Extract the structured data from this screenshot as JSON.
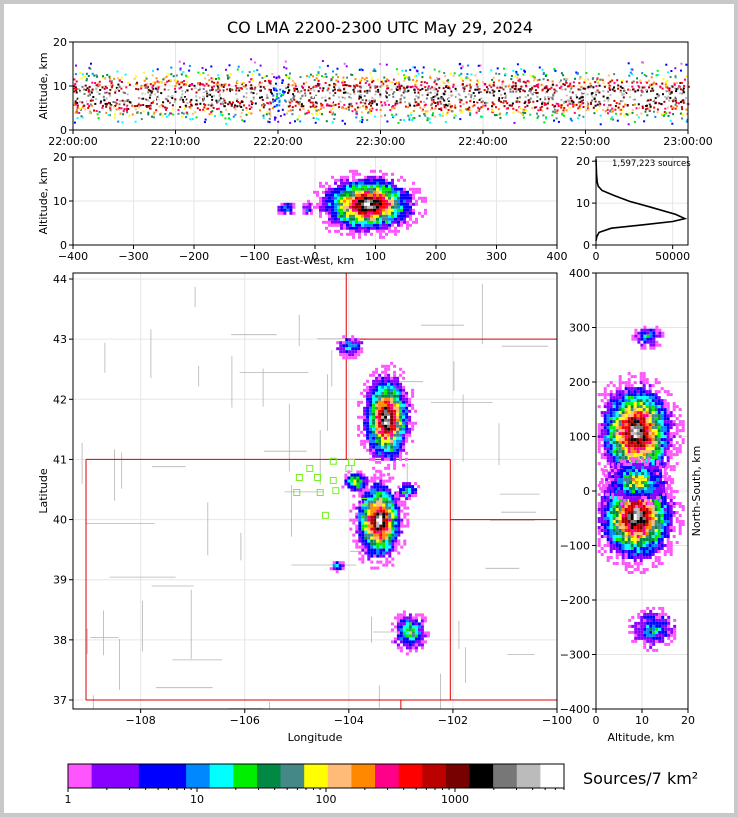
{
  "chart_data": [
    {
      "panel": "time-altitude",
      "type": "heatmap",
      "title": "CO LMA 2200-2300 UTC May 29, 2024",
      "ylabel": "Altitude, km",
      "xlabel": "",
      "xlim": [
        "22:00:00",
        "23:00:00"
      ],
      "ylim": [
        0,
        20
      ],
      "x_ticks": [
        "22:00:00",
        "22:10:00",
        "22:20:00",
        "22:30:00",
        "22:40:00",
        "22:50:00",
        "23:00:00"
      ],
      "y_ticks": [
        "0",
        "10",
        "20"
      ],
      "grid": true
    },
    {
      "panel": "eastwest-altitude",
      "type": "heatmap",
      "xlabel": "East-West, km",
      "ylabel": "Altitude, km",
      "xlim": [
        -400,
        400
      ],
      "ylim": [
        0,
        20
      ],
      "x_ticks": [
        "−400",
        "−300",
        "−200",
        "−100",
        "0",
        "100",
        "200",
        "300",
        "400"
      ],
      "y_ticks": [
        "0",
        "10",
        "20"
      ],
      "grid": true
    },
    {
      "panel": "altitude-histogram",
      "type": "line",
      "annotation": "1,597,223 sources",
      "xlim": [
        0,
        60000
      ],
      "ylim": [
        0,
        21
      ],
      "x_ticks": [
        "0",
        "50000"
      ],
      "y_ticks": [
        "0",
        "10",
        "20"
      ],
      "x": [
        0,
        500,
        2000,
        10000,
        30000,
        50000,
        58000,
        52000,
        36000,
        22000,
        12000,
        4000,
        1500,
        800,
        300,
        0
      ],
      "y": [
        1.0,
        2.0,
        3.0,
        4.0,
        4.8,
        5.6,
        6.3,
        7.3,
        9.0,
        10.4,
        11.8,
        13.0,
        14.0,
        15.0,
        17.0,
        20.5
      ]
    },
    {
      "panel": "plan-view",
      "type": "heatmap",
      "xlabel": "Longitude",
      "ylabel": "Latitude",
      "xlim": [
        -109.3,
        -100
      ],
      "ylim": [
        36.85,
        44.1
      ],
      "x_ticks": [
        "−108",
        "−106",
        "−104",
        "−102",
        "−100"
      ],
      "y_ticks": [
        "37",
        "38",
        "39",
        "40",
        "41",
        "42",
        "43",
        "44"
      ],
      "grid": true
    },
    {
      "panel": "altitude-northsouth",
      "type": "heatmap",
      "xlabel": "Altitude, km",
      "ylabel": "North-South, km",
      "xlim": [
        0,
        20
      ],
      "ylim": [
        -400,
        400
      ],
      "x_ticks": [
        "0",
        "10",
        "20"
      ],
      "y_ticks": [
        "−400",
        "−300",
        "−200",
        "−100",
        "0",
        "100",
        "200",
        "300",
        "400"
      ],
      "grid": true
    }
  ],
  "colorbar": {
    "label": "Sources/7 km²",
    "ticks": [
      "1",
      "10",
      "100",
      "1000"
    ],
    "colors": [
      "#ff55ff",
      "#8800ff",
      "#8800ff",
      "#0000ff",
      "#0000ff",
      "#0088ff",
      "#00ffff",
      "#00ee00",
      "#008844",
      "#448888",
      "#ffff00",
      "#ffbb77",
      "#ff8800",
      "#ff0088",
      "#ff0000",
      "#bb0000",
      "#770000",
      "#000000",
      "#777777",
      "#bbbbbb",
      "#ffffff"
    ]
  },
  "colors": {
    "state_border": "#dd0000",
    "county_line": "#b4b4b4",
    "station": "#77ee22"
  }
}
